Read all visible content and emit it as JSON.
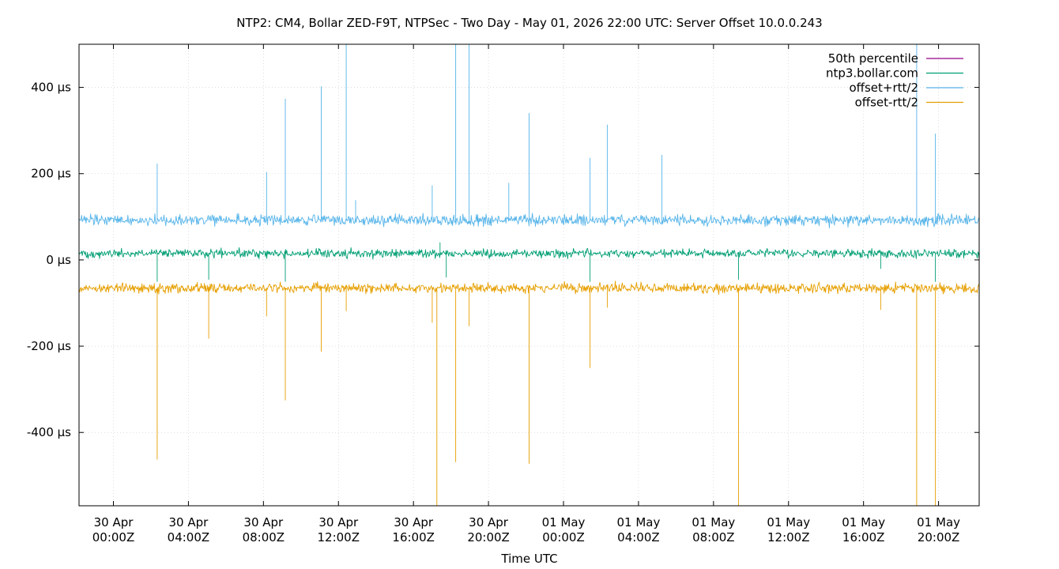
{
  "chart_data": {
    "type": "line",
    "title": "NTP2: CM4, Bollar ZED-F9T, NTPSec - Two Day - May 01, 2026 22:00 UTC: Server Offset 10.0.0.243",
    "xlabel": "Time UTC",
    "ylabel": "",
    "y_unit": "µs",
    "xlim": [
      "2026-04-29T22:10Z",
      "2026-05-01T22:10Z"
    ],
    "ylim": [
      -570,
      500
    ],
    "grid": true,
    "legend_position": "top-right",
    "x_ticks": [
      {
        "t": "2026-04-30T00:00Z",
        "line1": "30 Apr",
        "line2": "00:00Z"
      },
      {
        "t": "2026-04-30T04:00Z",
        "line1": "30 Apr",
        "line2": "04:00Z"
      },
      {
        "t": "2026-04-30T08:00Z",
        "line1": "30 Apr",
        "line2": "08:00Z"
      },
      {
        "t": "2026-04-30T12:00Z",
        "line1": "30 Apr",
        "line2": "12:00Z"
      },
      {
        "t": "2026-04-30T16:00Z",
        "line1": "30 Apr",
        "line2": "16:00Z"
      },
      {
        "t": "2026-04-30T20:00Z",
        "line1": "30 Apr",
        "line2": "20:00Z"
      },
      {
        "t": "2026-05-01T00:00Z",
        "line1": "01 May",
        "line2": "00:00Z"
      },
      {
        "t": "2026-05-01T04:00Z",
        "line1": "01 May",
        "line2": "04:00Z"
      },
      {
        "t": "2026-05-01T08:00Z",
        "line1": "01 May",
        "line2": "08:00Z"
      },
      {
        "t": "2026-05-01T12:00Z",
        "line1": "01 May",
        "line2": "12:00Z"
      },
      {
        "t": "2026-05-01T16:00Z",
        "line1": "01 May",
        "line2": "16:00Z"
      },
      {
        "t": "2026-05-01T20:00Z",
        "line1": "01 May",
        "line2": "20:00Z"
      }
    ],
    "y_ticks": [
      {
        "value": 400,
        "label": "400 µs"
      },
      {
        "value": 200,
        "label": "200 µs"
      },
      {
        "value": 0,
        "label": "0 µs"
      },
      {
        "value": -200,
        "label": "-200 µs"
      },
      {
        "value": -400,
        "label": "-400 µs"
      }
    ],
    "series": [
      {
        "name": "50th percentile",
        "color": "#94008a",
        "baseline": 0,
        "noise": 0,
        "spikes": []
      },
      {
        "name": "ntp3.bollar.com",
        "color": "#009e73",
        "baseline": 15,
        "noise": 7,
        "spikes": [
          {
            "t": "2026-04-30T02:20Z",
            "v": -50
          },
          {
            "t": "2026-04-30T05:05Z",
            "v": -45
          },
          {
            "t": "2026-04-30T09:10Z",
            "v": -50
          },
          {
            "t": "2026-04-30T17:25Z",
            "v": 40
          },
          {
            "t": "2026-04-30T17:45Z",
            "v": -40
          },
          {
            "t": "2026-05-01T01:25Z",
            "v": -50
          },
          {
            "t": "2026-05-01T09:20Z",
            "v": -45
          },
          {
            "t": "2026-05-01T16:55Z",
            "v": -20
          },
          {
            "t": "2026-05-01T19:50Z",
            "v": -50
          }
        ]
      },
      {
        "name": "offset+rtt/2",
        "color": "#56b4e9",
        "baseline": 92,
        "noise": 9,
        "spikes": [
          {
            "t": "2026-04-30T02:20Z",
            "v": 223
          },
          {
            "t": "2026-04-30T08:10Z",
            "v": 203
          },
          {
            "t": "2026-04-30T09:10Z",
            "v": 373
          },
          {
            "t": "2026-04-30T11:05Z",
            "v": 402
          },
          {
            "t": "2026-04-30T12:25Z",
            "v": 500
          },
          {
            "t": "2026-04-30T12:55Z",
            "v": 138
          },
          {
            "t": "2026-04-30T17:00Z",
            "v": 172
          },
          {
            "t": "2026-04-30T18:15Z",
            "v": 500
          },
          {
            "t": "2026-04-30T18:58Z",
            "v": 500
          },
          {
            "t": "2026-04-30T21:05Z",
            "v": 178
          },
          {
            "t": "2026-04-30T22:10Z",
            "v": 340
          },
          {
            "t": "2026-05-01T01:25Z",
            "v": 236
          },
          {
            "t": "2026-05-01T02:20Z",
            "v": 313
          },
          {
            "t": "2026-05-01T05:15Z",
            "v": 243
          },
          {
            "t": "2026-05-01T18:50Z",
            "v": 500
          },
          {
            "t": "2026-05-01T19:50Z",
            "v": 292
          }
        ]
      },
      {
        "name": "offset-rtt/2",
        "color": "#e69f00",
        "baseline": -65,
        "noise": 8,
        "spikes": [
          {
            "t": "2026-04-30T02:20Z",
            "v": -462
          },
          {
            "t": "2026-04-30T05:05Z",
            "v": -182
          },
          {
            "t": "2026-04-30T08:10Z",
            "v": -130
          },
          {
            "t": "2026-04-30T09:10Z",
            "v": -325
          },
          {
            "t": "2026-04-30T11:05Z",
            "v": -212
          },
          {
            "t": "2026-04-30T12:25Z",
            "v": -118
          },
          {
            "t": "2026-04-30T17:00Z",
            "v": -145
          },
          {
            "t": "2026-04-30T17:15Z",
            "v": -570
          },
          {
            "t": "2026-04-30T18:15Z",
            "v": -468
          },
          {
            "t": "2026-04-30T18:58Z",
            "v": -153
          },
          {
            "t": "2026-04-30T22:10Z",
            "v": -472
          },
          {
            "t": "2026-05-01T01:25Z",
            "v": -250
          },
          {
            "t": "2026-05-01T02:20Z",
            "v": -110
          },
          {
            "t": "2026-05-01T09:20Z",
            "v": -570
          },
          {
            "t": "2026-05-01T16:55Z",
            "v": -115
          },
          {
            "t": "2026-05-01T18:50Z",
            "v": -570
          },
          {
            "t": "2026-05-01T19:50Z",
            "v": -570
          }
        ]
      }
    ]
  }
}
